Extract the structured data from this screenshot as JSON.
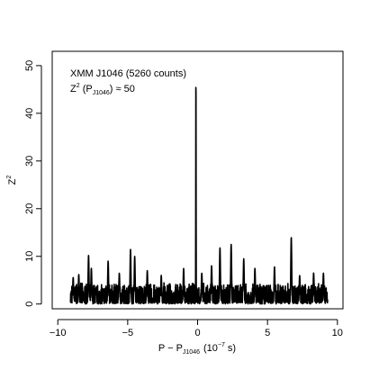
{
  "chart_data": {
    "type": "line",
    "title": "",
    "xlabel": {
      "base": "P − P",
      "sub": "J1046",
      "unit_pre": "(10",
      "unit_exp": "−7",
      "unit_post": " s)"
    },
    "ylabel": {
      "base": "Z",
      "sup": "2"
    },
    "xlim": [
      -10.4,
      10.4
    ],
    "ylim": [
      -1,
      53
    ],
    "xticks": [
      -10,
      -5,
      0,
      5,
      10
    ],
    "xtick_labels": [
      "−10",
      "−5",
      "0",
      "5",
      "10"
    ],
    "yticks": [
      0,
      10,
      20,
      30,
      40,
      50
    ],
    "ytick_labels": [
      "0",
      "10",
      "20",
      "30",
      "40",
      "50"
    ],
    "grid": false,
    "annotations": [
      {
        "id": "line1",
        "text": "XMM J1046 (5260 counts)"
      },
      {
        "id": "line2",
        "pre": "Z",
        "sup": "2",
        "mid": " (P",
        "sub": "J1046",
        "post": ") ≈ 50"
      }
    ],
    "series": [
      {
        "color": "#000000",
        "x_range": [
          -9.1,
          9.3
        ],
        "n_points": 1800,
        "noise_level": 0.9,
        "peaks": [
          {
            "x": -8.9,
            "y": 5.6
          },
          {
            "x": -8.5,
            "y": 6.2
          },
          {
            "x": -7.8,
            "y": 10.2
          },
          {
            "x": -7.6,
            "y": 7.5
          },
          {
            "x": -6.4,
            "y": 9.0
          },
          {
            "x": -5.6,
            "y": 6.5
          },
          {
            "x": -4.8,
            "y": 11.5
          },
          {
            "x": -4.5,
            "y": 10.0
          },
          {
            "x": -3.6,
            "y": 7.0
          },
          {
            "x": -2.6,
            "y": 6.0
          },
          {
            "x": -1.0,
            "y": 7.5
          },
          {
            "x": -0.12,
            "y": 50.5
          },
          {
            "x": 0.3,
            "y": 6.5
          },
          {
            "x": 1.0,
            "y": 8.0
          },
          {
            "x": 1.6,
            "y": 11.8
          },
          {
            "x": 2.4,
            "y": 12.5
          },
          {
            "x": 3.3,
            "y": 9.5
          },
          {
            "x": 4.1,
            "y": 7.5
          },
          {
            "x": 5.5,
            "y": 7.8
          },
          {
            "x": 6.7,
            "y": 14.0
          },
          {
            "x": 7.3,
            "y": 6.0
          },
          {
            "x": 8.3,
            "y": 6.5
          },
          {
            "x": 9.0,
            "y": 6.5
          }
        ]
      }
    ]
  }
}
